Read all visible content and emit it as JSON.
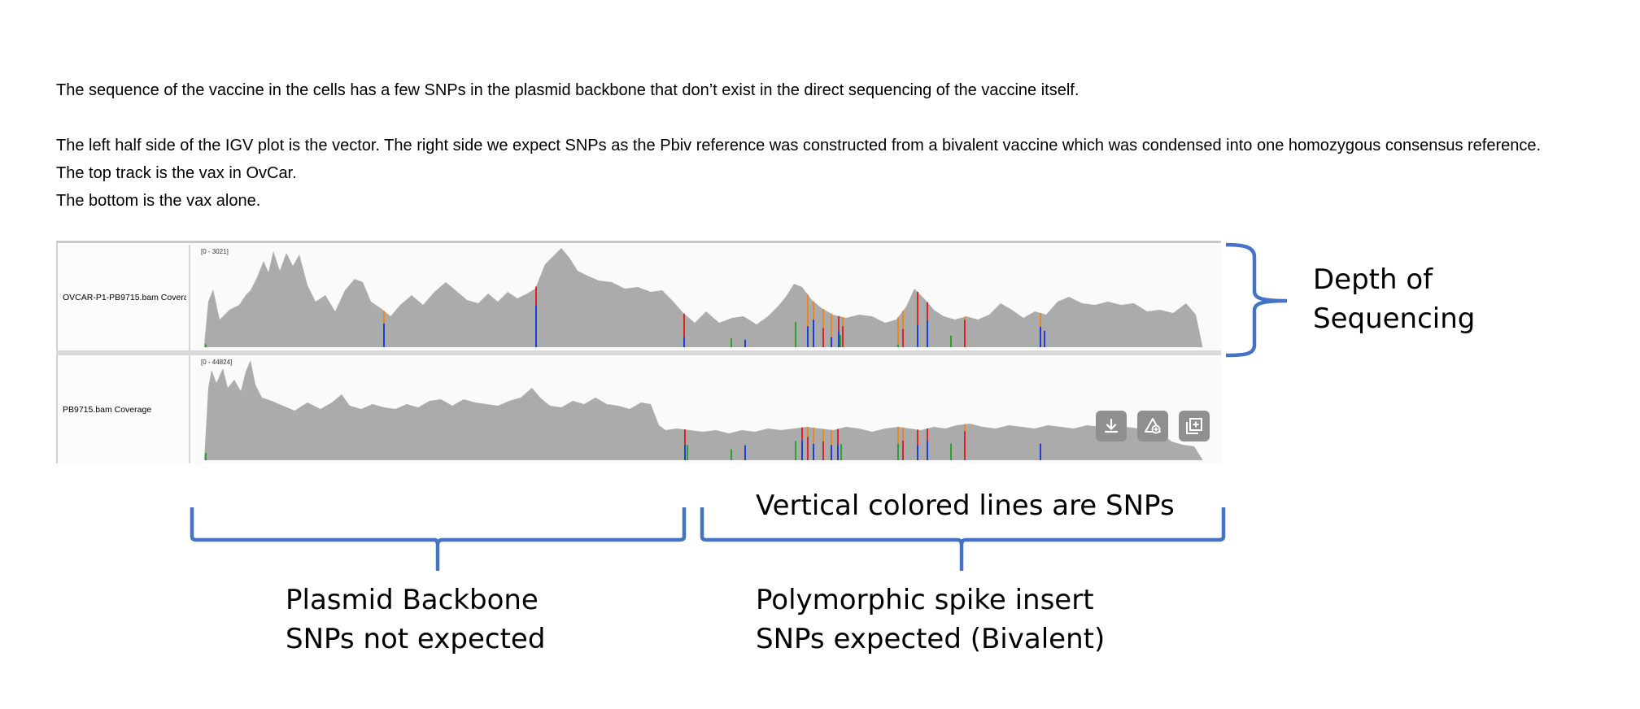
{
  "paragraphs": {
    "line1": "The sequence of the vaccine in the cells has a few SNPs in the plasmid backbone that don’t exist in the direct sequencing of the vaccine itself.",
    "line2": "The left half side of the IGV plot is the vector. The right side we expect SNPs as the Pbiv reference was constructed from a bivalent vaccine which was condensed into one homozygous consensus reference.",
    "line3": "The top track is the vax in OvCar.",
    "line4": "The bottom is the vax alone."
  },
  "tracks": [
    {
      "name": "OVCAR-P1-PB9715.bam Coverag",
      "range": "[0 - 3021]"
    },
    {
      "name": "PB9715.bam Coverage",
      "range": "[0 - 44824]"
    }
  ],
  "toolbar": {
    "icons": [
      "download-icon",
      "share-icon",
      "add-panel-icon"
    ]
  },
  "annotations": {
    "depth": [
      "Depth of",
      "Sequencing"
    ],
    "snp_note": "Vertical colored lines are SNPs",
    "backbone": [
      "Plasmid Backbone",
      "SNPs not expected"
    ],
    "spike": [
      "Polymorphic spike insert",
      "SNPs expected (Bivalent)"
    ]
  },
  "colors": {
    "coverage": "#ababab",
    "bracket": "#4472c4",
    "snp_red": "#d62728",
    "snp_blue": "#1f3fd0",
    "snp_green": "#2ca02c",
    "snp_orange": "#e8862a"
  }
}
